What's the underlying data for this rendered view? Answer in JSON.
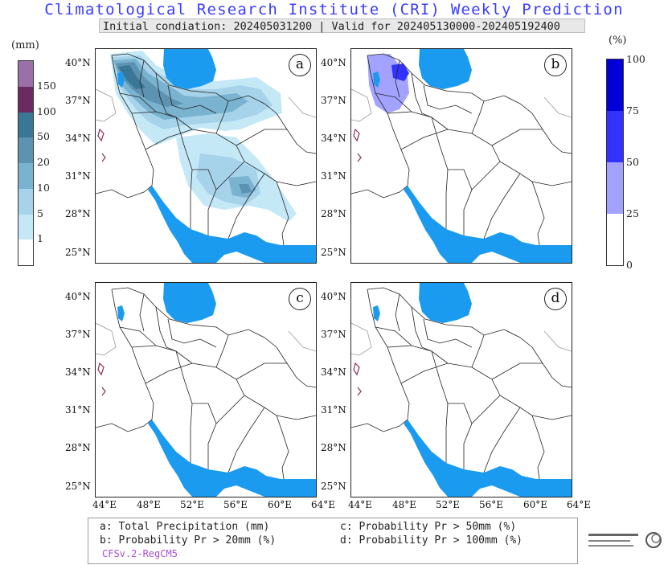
{
  "header": {
    "title": "Climatological Research Institute (CRI) Weekly Prediction",
    "subtitle": "Initial condiation: 202405031200 | Valid for 202405130000-202405192400"
  },
  "left_colorbar": {
    "unit": "(mm)",
    "labels": [
      "150",
      "100",
      "50",
      "20",
      "10",
      "5",
      "1"
    ],
    "colors": [
      "#9b6fa8",
      "#6b2a62",
      "#3a7695",
      "#5d93b0",
      "#79b3cf",
      "#a6d3ea",
      "#c5e8f7",
      "#ffffff"
    ]
  },
  "right_colorbar": {
    "unit": "(%)",
    "labels": [
      "100",
      "75",
      "50",
      "25",
      "0"
    ],
    "colors": [
      "#0000d8",
      "#3333ff",
      "#a3a3ff",
      "#ffffff"
    ]
  },
  "panels": [
    {
      "tag": "a"
    },
    {
      "tag": "b"
    },
    {
      "tag": "c"
    },
    {
      "tag": "d"
    }
  ],
  "axes": {
    "lat_labels": [
      "40°N",
      "37°N",
      "34°N",
      "31°N",
      "28°N",
      "25°N"
    ],
    "lon_labels": [
      "44°E",
      "48°E",
      "52°E",
      "56°E",
      "60°E",
      "64°E"
    ]
  },
  "legend": {
    "a": "a: Total Precipitation (mm)",
    "b": "b: Probability Pr > 20mm (%)",
    "c": "c: Probability Pr > 50mm (%)",
    "d": "d: Probability Pr > 100mm (%)",
    "model": "CFSv.2-RegCM5"
  },
  "colors": {
    "water": "#1a9bf0",
    "title": "#3b3bff",
    "model": "#a64fd6"
  }
}
